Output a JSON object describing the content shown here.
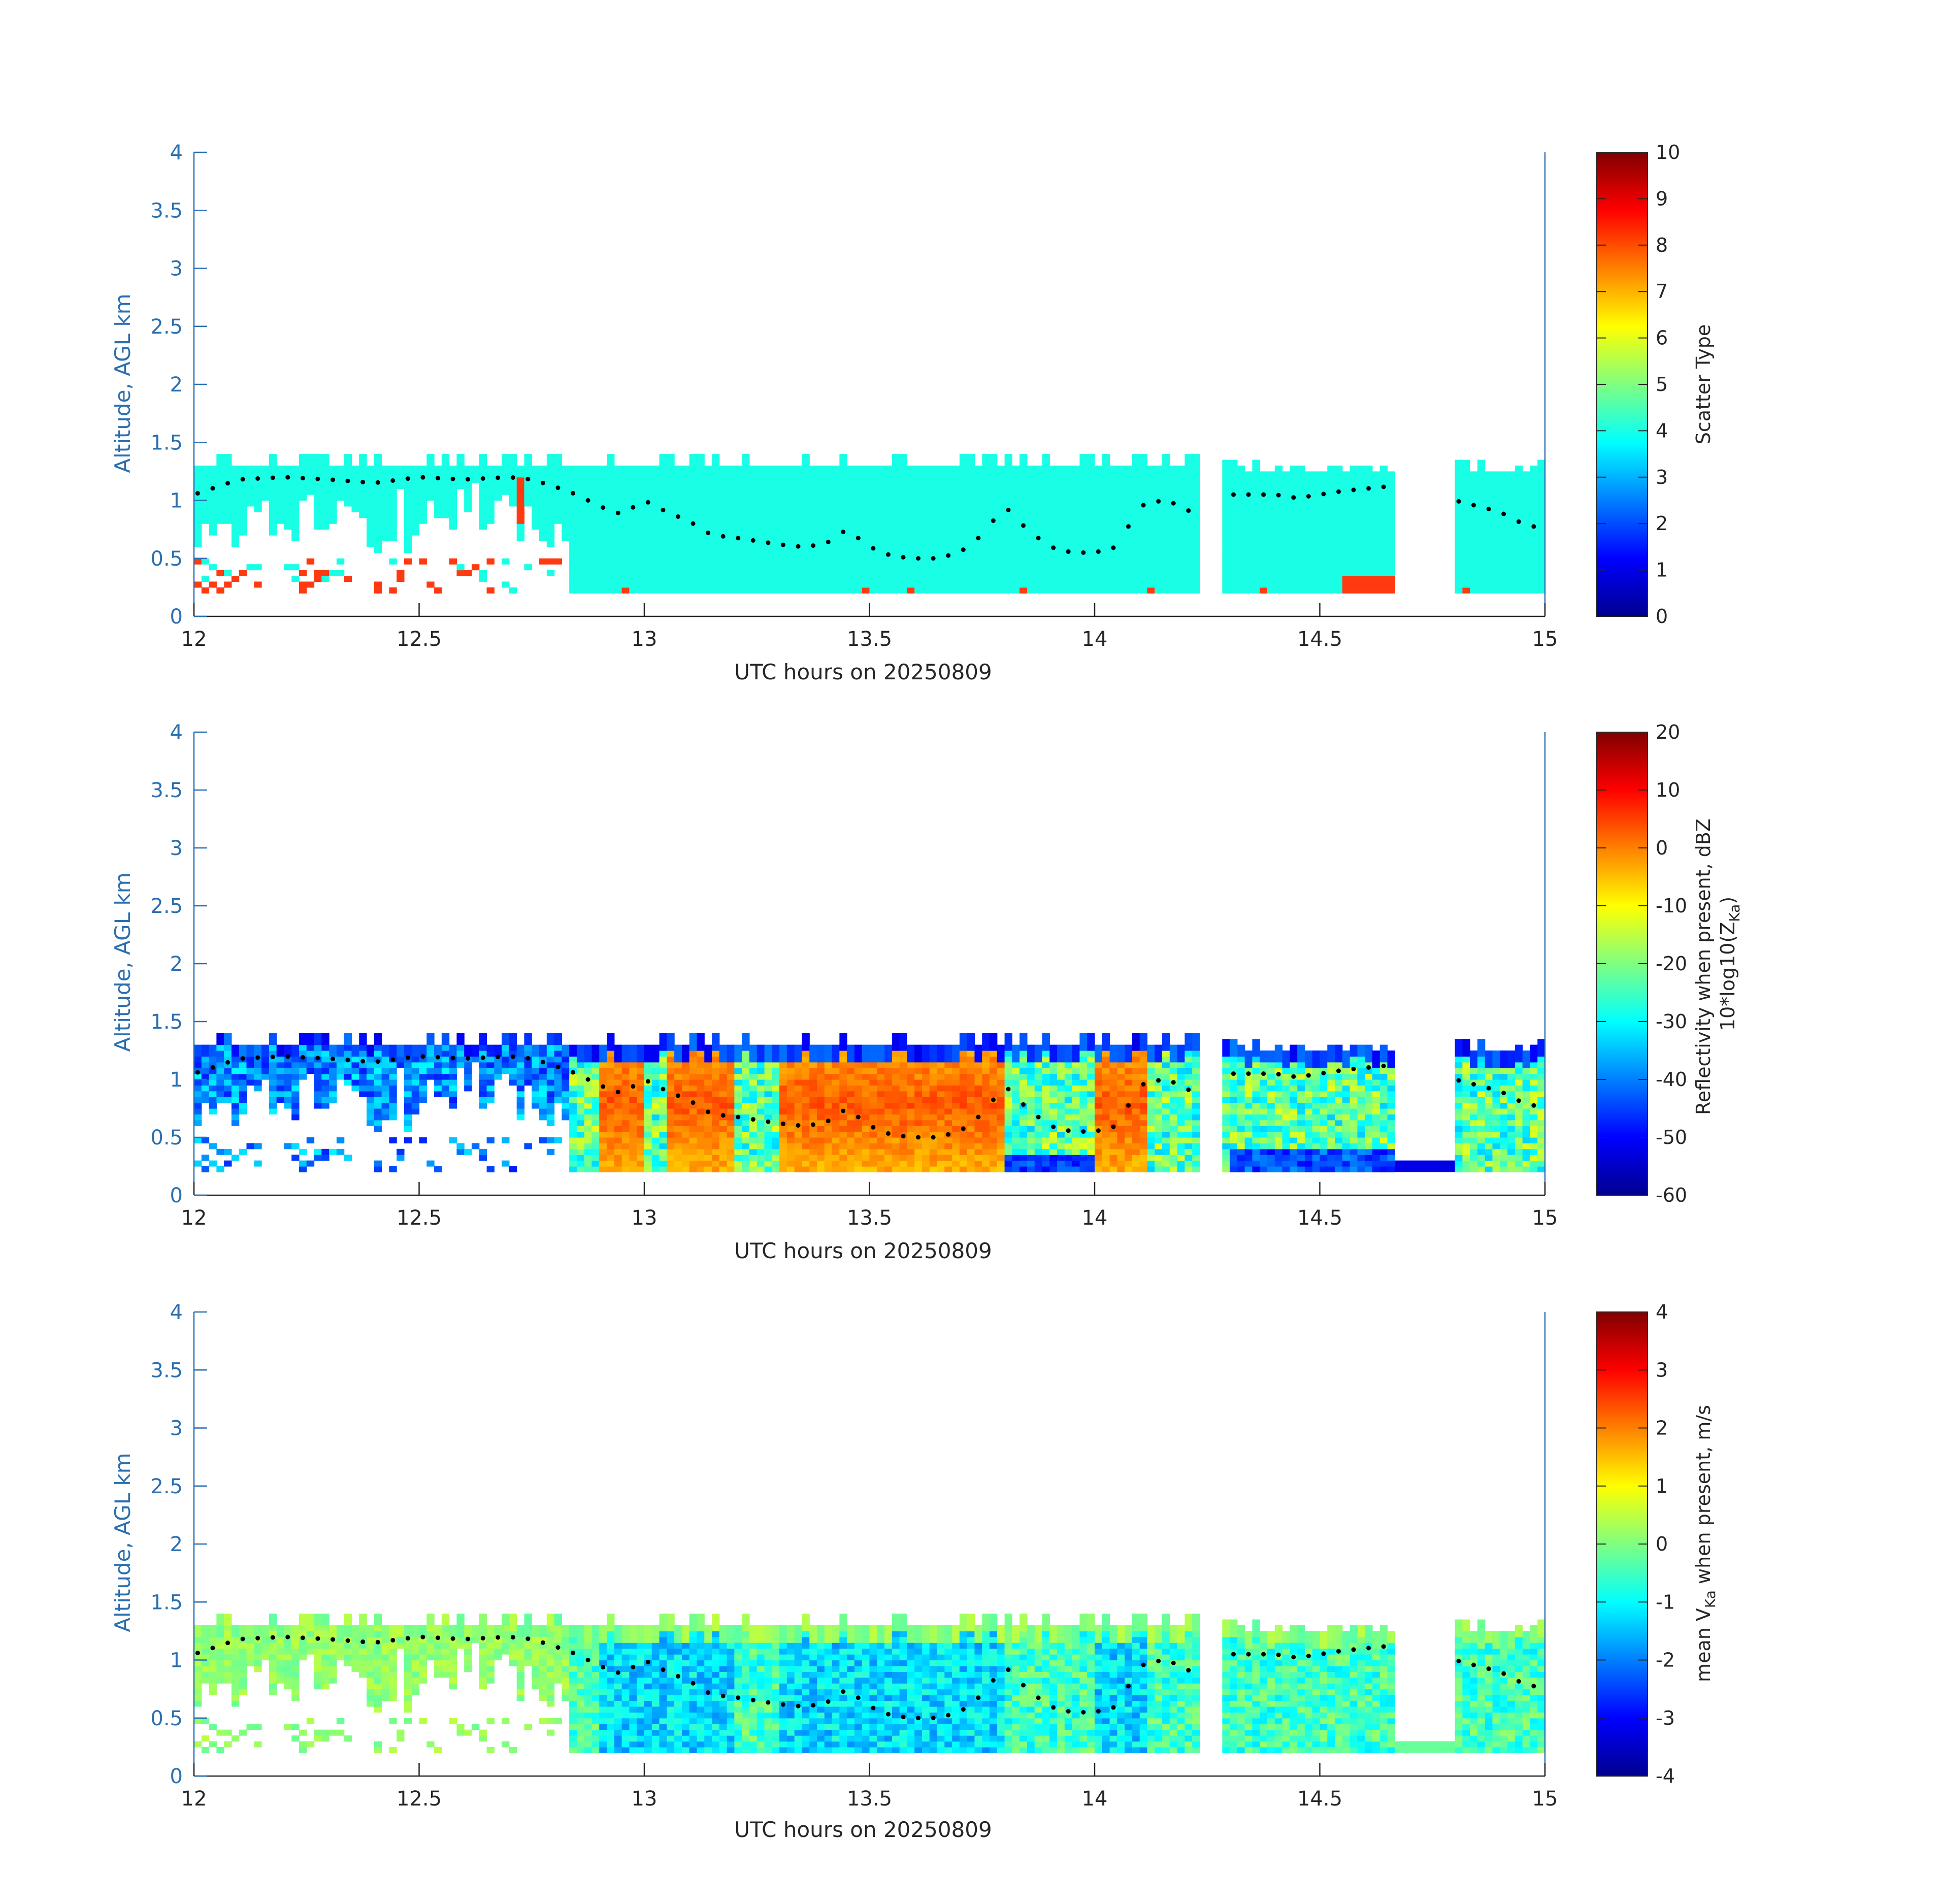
{
  "figure": {
    "colors": {
      "y_axis": "#2a6fb0",
      "x_axis": "#262626",
      "background": "#ffffff",
      "cloud_top_dots": "#000000",
      "scatter_main": "#19ffe6",
      "scatter_alt": "#ff3a10"
    }
  },
  "chart_data": [
    {
      "type": "heatmap",
      "panel": "scatter-type",
      "xlabel": "UTC hours on 20250809",
      "ylabel": "Altitude, AGL km",
      "xlim": [
        12,
        15
      ],
      "ylim": [
        0,
        4
      ],
      "x_ticks": [
        "12",
        "12.5",
        "13",
        "13.5",
        "14",
        "14.5",
        "15"
      ],
      "y_ticks": [
        "0",
        "0.5",
        "1",
        "1.5",
        "2",
        "2.5",
        "3",
        "3.5",
        "4"
      ],
      "colorbar": {
        "label": "Scatter Type",
        "label_lines": [
          "Scatter Type"
        ],
        "range": [
          0,
          10
        ],
        "ticks": [
          "0",
          "1",
          "2",
          "3",
          "4",
          "5",
          "6",
          "7",
          "8",
          "9",
          "10"
        ]
      },
      "field": "scatter",
      "cloud_base_km": 0.2,
      "cloud_top_km_approx": 1.3,
      "dominant_value": 3.8,
      "secondary_value": 8.0
    },
    {
      "type": "heatmap",
      "panel": "reflectivity",
      "xlabel": "UTC hours on 20250809",
      "ylabel": "Altitude, AGL km",
      "xlim": [
        12,
        15
      ],
      "ylim": [
        0,
        4
      ],
      "x_ticks": [
        "12",
        "12.5",
        "13",
        "13.5",
        "14",
        "14.5",
        "15"
      ],
      "y_ticks": [
        "0",
        "0.5",
        "1",
        "1.5",
        "2",
        "2.5",
        "3",
        "3.5",
        "4"
      ],
      "colorbar": {
        "label": "Reflectivity when present, dBZ 10*log10(Z_Ka)",
        "label_lines": [
          "Reflectivity when present, dBZ",
          "10*log10(Z",
          "Ka",
          ")"
        ],
        "range": [
          -60,
          20
        ],
        "ticks": [
          "-60",
          "-50",
          "-40",
          "-30",
          "-20",
          "-10",
          "0",
          "10",
          "20"
        ]
      },
      "field": "reflectivity",
      "value_range_dBZ": [
        -60,
        5
      ]
    },
    {
      "type": "heatmap",
      "panel": "velocity",
      "xlabel": "UTC hours on 20250809",
      "ylabel": "Altitude, AGL km",
      "xlim": [
        12,
        15
      ],
      "ylim": [
        0,
        4
      ],
      "x_ticks": [
        "12",
        "12.5",
        "13",
        "13.5",
        "14",
        "14.5",
        "15"
      ],
      "y_ticks": [
        "0",
        "0.5",
        "1",
        "1.5",
        "2",
        "2.5",
        "3",
        "3.5",
        "4"
      ],
      "colorbar": {
        "label": "mean V_Ka when present, m/s",
        "label_lines": [
          "mean V",
          "Ka",
          " when present, m/s"
        ],
        "range": [
          -4,
          4
        ],
        "ticks": [
          "-4",
          "-3",
          "-2",
          "-1",
          "0",
          "1",
          "2",
          "3",
          "4"
        ]
      },
      "field": "velocity",
      "value_range_ms": [
        -2.5,
        0.5
      ]
    }
  ],
  "cloud_top_dots": {
    "x": [
      12.0,
      12.1,
      12.2,
      12.3,
      12.4,
      12.5,
      12.6,
      12.7,
      12.75,
      12.8,
      12.85,
      12.9,
      12.95,
      13.0,
      13.05,
      13.1,
      13.15,
      13.2,
      13.25,
      13.3,
      13.35,
      13.4,
      13.45,
      13.5,
      13.55,
      13.6,
      13.65,
      13.7,
      13.75,
      13.8,
      13.85,
      13.9,
      13.95,
      14.0,
      14.05,
      14.1,
      14.15,
      14.2,
      14.25,
      14.3,
      14.35,
      14.4,
      14.45,
      14.5,
      14.55,
      14.6,
      14.65,
      14.8,
      14.85,
      14.9,
      14.95,
      15.0
    ],
    "y": [
      1.05,
      1.18,
      1.2,
      1.18,
      1.15,
      1.2,
      1.18,
      1.2,
      1.18,
      1.12,
      1.05,
      0.95,
      0.88,
      1.0,
      0.9,
      0.82,
      0.7,
      0.68,
      0.65,
      0.62,
      0.6,
      0.62,
      0.75,
      0.6,
      0.52,
      0.5,
      0.5,
      0.55,
      0.7,
      0.95,
      0.75,
      0.6,
      0.55,
      0.55,
      0.6,
      0.95,
      1.0,
      0.95,
      0.72,
      1.05,
      1.05,
      1.05,
      1.02,
      1.05,
      1.08,
      1.1,
      1.12,
      1.0,
      0.95,
      0.9,
      0.8,
      0.75
    ]
  }
}
